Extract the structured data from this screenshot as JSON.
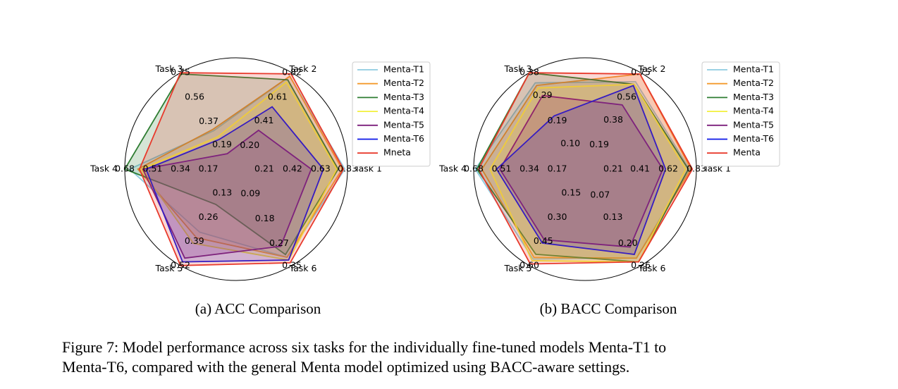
{
  "caption_lines": [
    "Figure 7: Model performance across six tasks for the individually fine-tuned models Menta-T1 to",
    "Menta-T6, compared with the general Menta model optimized using BACC-aware settings."
  ],
  "chart_data": [
    {
      "type": "radar",
      "caption": "(a) ACC Comparison",
      "categories": [
        "Task 1",
        "Task 2",
        "Task 3",
        "Task 4",
        "Task 5",
        "Task 6"
      ],
      "rlims": [
        [
          0,
          0.83
        ],
        [
          0,
          0.82
        ],
        [
          0,
          0.75
        ],
        [
          0,
          0.68
        ],
        [
          0,
          0.52
        ],
        [
          0,
          0.35
        ]
      ],
      "rticks": [
        [
          0.21,
          0.42,
          0.63,
          0.83
        ],
        [
          {
            "value": 0.2,
            "label": "0.20"
          },
          0.41,
          0.61,
          0.82
        ],
        [
          0.19,
          0.37,
          0.56,
          0.75
        ],
        [
          0.17,
          0.34,
          0.51,
          0.68
        ],
        [
          0.13,
          0.26,
          0.39,
          0.52
        ],
        [
          0.09,
          0.18,
          0.27,
          0.35
        ]
      ],
      "series": [
        {
          "name": "Menta-T1",
          "color": "#8ecbe0",
          "values": [
            0.81,
            0.79,
            0.3,
            0.65,
            0.34,
            0.32
          ]
        },
        {
          "name": "Menta-T2",
          "color": "#f39a2c",
          "values": [
            0.79,
            0.79,
            0.31,
            0.6,
            0.37,
            0.32
          ]
        },
        {
          "name": "Menta-T3",
          "color": "#2e7d32",
          "values": [
            0.76,
            0.76,
            0.74,
            0.68,
            0.19,
            0.31
          ]
        },
        {
          "name": "Menta-T4",
          "color": "#f2f03c",
          "values": [
            0.75,
            0.74,
            0.25,
            0.58,
            0.4,
            0.33
          ]
        },
        {
          "name": "Menta-T5",
          "color": "#7b1f7b",
          "values": [
            0.56,
            0.33,
            0.12,
            0.57,
            0.48,
            0.28
          ]
        },
        {
          "name": "Menta-T6",
          "color": "#0a14e6",
          "values": [
            0.65,
            0.53,
            0.23,
            0.55,
            0.5,
            0.33
          ]
        },
        {
          "name": "Mneta",
          "color": "#e83a2c",
          "values": [
            0.8,
            0.81,
            0.75,
            0.59,
            0.52,
            0.34
          ]
        }
      ]
    },
    {
      "type": "radar",
      "caption": "(b) BACC Comparison",
      "categories": [
        "Task 1",
        "Task 2",
        "Task 3",
        "Task 4",
        "Task 5",
        "Task 6"
      ],
      "rlims": [
        [
          0,
          0.83
        ],
        [
          0,
          0.75
        ],
        [
          0,
          0.38
        ],
        [
          0,
          0.68
        ],
        [
          0,
          0.6
        ],
        [
          0,
          0.26
        ]
      ],
      "rticks": [
        [
          0.21,
          0.41,
          0.62,
          0.83
        ],
        [
          0.19,
          0.38,
          0.56,
          0.75
        ],
        [
          {
            "value": 0.1,
            "label": "0.10"
          },
          0.19,
          0.29,
          0.38
        ],
        [
          0.17,
          0.34,
          0.51,
          0.68
        ],
        [
          0.15,
          {
            "value": 0.3,
            "label": "0.30"
          },
          0.45,
          {
            "value": 0.6,
            "label": "0.60"
          }
        ],
        [
          0.07,
          0.13,
          {
            "value": 0.2,
            "label": "0.20"
          },
          0.26
        ]
      ],
      "series": [
        {
          "name": "Menta-T1",
          "color": "#8ecbe0",
          "values": [
            0.78,
            0.68,
            0.34,
            0.67,
            0.56,
            0.24
          ]
        },
        {
          "name": "Menta-T2",
          "color": "#f39a2c",
          "values": [
            0.79,
            0.74,
            0.33,
            0.63,
            0.55,
            0.24
          ]
        },
        {
          "name": "Menta-T3",
          "color": "#2e7d32",
          "values": [
            0.77,
            0.66,
            0.38,
            0.66,
            0.53,
            0.25
          ]
        },
        {
          "name": "Menta-T4",
          "color": "#f2f03c",
          "values": [
            0.75,
            0.66,
            0.32,
            0.58,
            0.57,
            0.25
          ]
        },
        {
          "name": "Menta-T5",
          "color": "#7b1f7b",
          "values": [
            0.58,
            0.5,
            0.29,
            0.52,
            0.44,
            0.21
          ]
        },
        {
          "name": "Menta-T6",
          "color": "#0a14e6",
          "values": [
            0.6,
            0.65,
            0.21,
            0.54,
            0.46,
            0.23
          ]
        },
        {
          "name": "Menta",
          "color": "#e83a2c",
          "values": [
            0.8,
            0.74,
            0.38,
            0.65,
            0.59,
            0.25
          ]
        }
      ]
    }
  ]
}
